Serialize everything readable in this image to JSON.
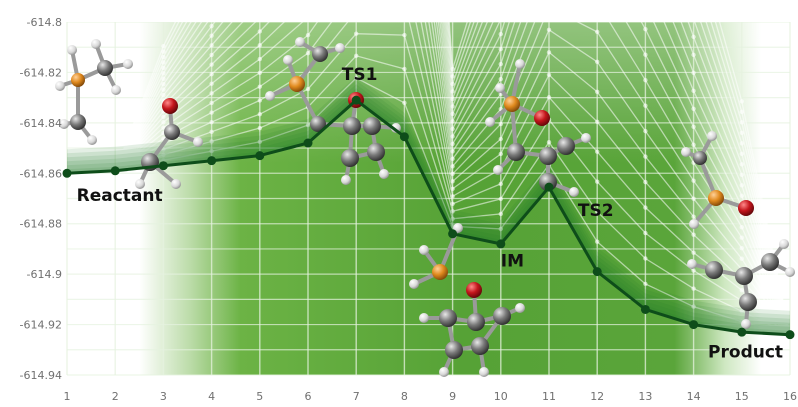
{
  "chart_data": {
    "type": "line",
    "title": "",
    "xlabel": "",
    "ylabel": "",
    "x": [
      1,
      2,
      3,
      4,
      5,
      6,
      7,
      8,
      9,
      10,
      11,
      12,
      13,
      14,
      15,
      16
    ],
    "xlim": [
      1,
      16
    ],
    "ylim": [
      -614.94,
      -614.8
    ],
    "y_ticks": [
      -614.8,
      -614.82,
      -614.84,
      -614.86,
      -614.88,
      -614.9,
      -614.92,
      -614.94
    ],
    "y_tick_labels": [
      "-614.8",
      "-614.82",
      "-614.84",
      "-614.86",
      "-614.88",
      "-614.9",
      "-614.92",
      "-614.94"
    ],
    "x_tick_labels": [
      "1",
      "2",
      "3",
      "4",
      "5",
      "6",
      "7",
      "8",
      "9",
      "10",
      "11",
      "12",
      "13",
      "14",
      "15",
      "16"
    ],
    "grid": true,
    "series": [
      {
        "values": [
          -614.86,
          -614.859,
          -614.857,
          -614.855,
          -614.853,
          -614.848,
          -614.831,
          -614.8455,
          -614.884,
          -614.888,
          -614.8655,
          -614.899,
          -614.914,
          -614.92,
          -614.923,
          -614.924
        ]
      }
    ],
    "annotations": [
      {
        "text": "Reactant",
        "x": 1.2,
        "y": -614.871
      },
      {
        "text": "TS1",
        "x": 6.7,
        "y": -614.823
      },
      {
        "text": "IM",
        "x": 10.0,
        "y": -614.897
      },
      {
        "text": "TS2",
        "x": 11.6,
        "y": -614.877
      },
      {
        "text": "Product",
        "x": 14.3,
        "y": -614.933
      }
    ],
    "colors": {
      "main_line": "#0e4d1a",
      "background": "#5aa53a",
      "fade": "#ffffff",
      "grid": "#e6f2df",
      "oxygen": "#c4161c",
      "phosphorus": "#e08a1e",
      "carbon": "#7a7a7a",
      "hydrogen": "#d8d8d8"
    }
  }
}
